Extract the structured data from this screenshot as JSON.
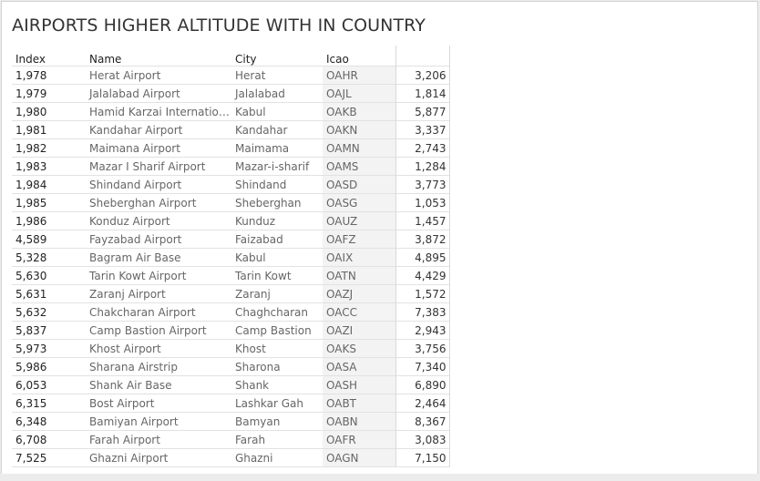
{
  "sheet": {
    "title": "AIRPORTS HIGHER ALTITUDE WITH IN COUNTRY"
  },
  "table": {
    "headers": {
      "index": "Index",
      "name": "Name",
      "city": "City",
      "icao": "Icao",
      "value": ""
    },
    "rows": [
      {
        "index": "1,978",
        "name": "Herat Airport",
        "city": "Herat",
        "icao": "OAHR",
        "value": "3,206"
      },
      {
        "index": "1,979",
        "name": "Jalalabad Airport",
        "city": "Jalalabad",
        "icao": "OAJL",
        "value": "1,814"
      },
      {
        "index": "1,980",
        "name": "Hamid Karzai Internation..",
        "city": "Kabul",
        "icao": "OAKB",
        "value": "5,877"
      },
      {
        "index": "1,981",
        "name": "Kandahar Airport",
        "city": "Kandahar",
        "icao": "OAKN",
        "value": "3,337"
      },
      {
        "index": "1,982",
        "name": "Maimana Airport",
        "city": "Maimama",
        "icao": "OAMN",
        "value": "2,743"
      },
      {
        "index": "1,983",
        "name": "Mazar I Sharif Airport",
        "city": "Mazar-i-sharif",
        "icao": "OAMS",
        "value": "1,284"
      },
      {
        "index": "1,984",
        "name": "Shindand Airport",
        "city": "Shindand",
        "icao": "OASD",
        "value": "3,773"
      },
      {
        "index": "1,985",
        "name": "Sheberghan Airport",
        "city": "Sheberghan",
        "icao": "OASG",
        "value": "1,053"
      },
      {
        "index": "1,986",
        "name": "Konduz Airport",
        "city": "Kunduz",
        "icao": "OAUZ",
        "value": "1,457"
      },
      {
        "index": "4,589",
        "name": "Fayzabad Airport",
        "city": "Faizabad",
        "icao": "OAFZ",
        "value": "3,872"
      },
      {
        "index": "5,328",
        "name": "Bagram Air Base",
        "city": "Kabul",
        "icao": "OAIX",
        "value": "4,895"
      },
      {
        "index": "5,630",
        "name": "Tarin Kowt Airport",
        "city": "Tarin Kowt",
        "icao": "OATN",
        "value": "4,429"
      },
      {
        "index": "5,631",
        "name": "Zaranj Airport",
        "city": "Zaranj",
        "icao": "OAZJ",
        "value": "1,572"
      },
      {
        "index": "5,632",
        "name": "Chakcharan Airport",
        "city": "Chaghcharan",
        "icao": "OACC",
        "value": "7,383"
      },
      {
        "index": "5,837",
        "name": "Camp Bastion Airport",
        "city": "Camp Bastion",
        "icao": "OAZI",
        "value": "2,943"
      },
      {
        "index": "5,973",
        "name": "Khost Airport",
        "city": "Khost",
        "icao": "OAKS",
        "value": "3,756"
      },
      {
        "index": "5,986",
        "name": "Sharana Airstrip",
        "city": "Sharona",
        "icao": "OASA",
        "value": "7,340"
      },
      {
        "index": "6,053",
        "name": "Shank Air Base",
        "city": "Shank",
        "icao": "OASH",
        "value": "6,890"
      },
      {
        "index": "6,315",
        "name": "Bost Airport",
        "city": "Lashkar Gah",
        "icao": "OABT",
        "value": "2,464"
      },
      {
        "index": "6,348",
        "name": "Bamiyan Airport",
        "city": "Bamyan",
        "icao": "OABN",
        "value": "8,367"
      },
      {
        "index": "6,708",
        "name": "Farah Airport",
        "city": "Farah",
        "icao": "OAFR",
        "value": "3,083"
      },
      {
        "index": "7,525",
        "name": "Ghazni Airport",
        "city": "Ghazni",
        "icao": "OAGN",
        "value": "7,150"
      }
    ]
  }
}
